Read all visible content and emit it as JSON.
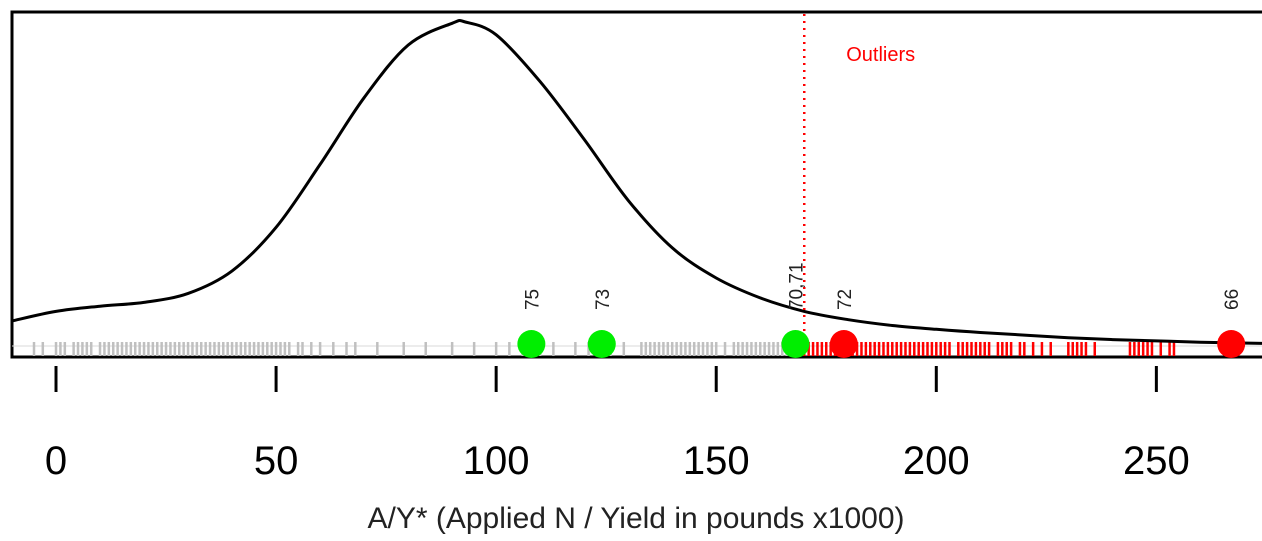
{
  "chart_data": {
    "type": "density",
    "title": "",
    "xlabel": "A/Y* (Applied N / Yield in pounds x1000)",
    "ylabel": "",
    "xlim": [
      -10,
      274
    ],
    "x_ticks": [
      0,
      50,
      100,
      150,
      200,
      250
    ],
    "grid": false,
    "legend": "none",
    "colors": {
      "curve": "#000000",
      "rug_normal": "#c0c0c0",
      "rug_outlier": "#ff0000",
      "highlight": "#00ee00",
      "outlier_point": "#ff0000",
      "threshold": "#ff0000"
    },
    "density_curve": {
      "x": [
        -10,
        0,
        10,
        20,
        30,
        40,
        50,
        60,
        70,
        80,
        90,
        93,
        100,
        110,
        120,
        130,
        140,
        150,
        160,
        170,
        180,
        190,
        200,
        210,
        220,
        230,
        240,
        250,
        260,
        274
      ],
      "y": [
        0.0039,
        0.0054,
        0.0062,
        0.0068,
        0.0082,
        0.0117,
        0.0185,
        0.0283,
        0.0387,
        0.0469,
        0.0503,
        0.0505,
        0.0485,
        0.0412,
        0.0322,
        0.0227,
        0.0153,
        0.0106,
        0.0075,
        0.0054,
        0.0041,
        0.0032,
        0.0026,
        0.0021,
        0.0017,
        0.0013,
        0.001,
        0.0008,
        0.0006,
        0.0004
      ]
    },
    "threshold": {
      "x": 170,
      "label": "Outliers"
    },
    "points": [
      {
        "label": "75",
        "x": 108,
        "group": "normal"
      },
      {
        "label": "73",
        "x": 124,
        "group": "normal"
      },
      {
        "label": "70,71",
        "x": 168,
        "group": "normal"
      },
      {
        "label": "72",
        "x": 179,
        "group": "outlier"
      },
      {
        "label": "66",
        "x": 267,
        "group": "outlier"
      }
    ],
    "rug_normal": [
      -5,
      -3,
      0,
      1,
      2,
      4,
      5,
      6,
      7,
      8,
      10,
      11,
      12,
      13,
      14,
      15,
      16,
      17,
      18,
      19,
      20,
      21,
      22,
      23,
      24,
      25,
      26,
      27,
      28,
      29,
      30,
      31,
      32,
      33,
      34,
      35,
      36,
      37,
      38,
      39,
      40,
      41,
      42,
      43,
      44,
      45,
      46,
      47,
      48,
      49,
      50,
      51,
      52,
      53,
      55,
      56,
      58,
      60,
      63,
      66,
      68,
      73,
      79,
      84,
      90,
      95,
      100,
      103,
      106,
      110,
      113,
      118,
      121,
      126,
      129,
      133,
      134,
      135,
      136,
      137,
      138,
      139,
      140,
      141,
      142,
      143,
      144,
      145,
      146,
      147,
      148,
      149,
      150,
      152,
      154,
      155,
      156,
      157,
      158,
      159,
      160,
      161,
      162,
      163,
      164,
      165,
      166,
      167,
      168,
      169
    ],
    "rug_outlier": [
      170,
      171,
      172,
      173,
      174,
      175,
      176,
      177,
      178,
      179,
      180,
      181,
      182,
      183,
      184,
      185,
      186,
      187,
      188,
      189,
      190,
      191,
      192,
      193,
      194,
      195,
      196,
      197,
      198,
      199,
      200,
      201,
      202,
      203,
      205,
      206,
      207,
      208,
      209,
      210,
      211,
      212,
      214,
      215,
      216,
      217,
      219,
      220,
      222,
      224,
      226,
      230,
      231,
      232,
      233,
      234,
      236,
      244,
      245,
      246,
      247,
      248,
      249,
      251,
      253,
      254
    ]
  }
}
